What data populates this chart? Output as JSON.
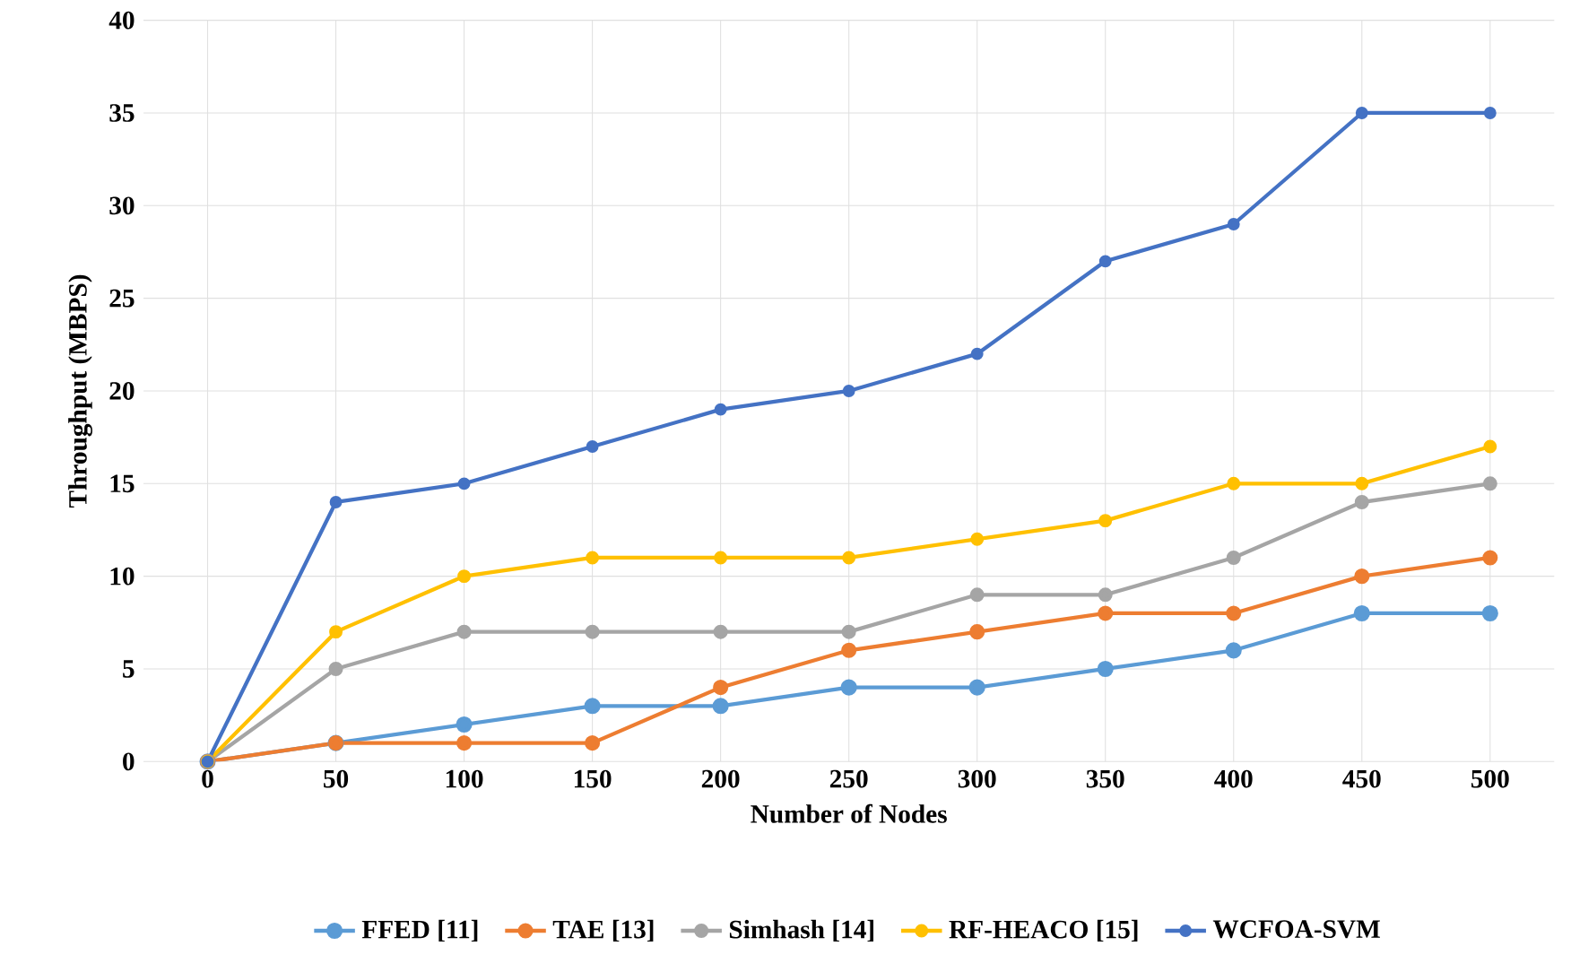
{
  "chart_data": {
    "type": "line",
    "xlabel": "Number of Nodes",
    "ylabel": "Throughput (MBPS)",
    "categories": [
      "0",
      "50",
      "100",
      "150",
      "200",
      "250",
      "300",
      "350",
      "400",
      "450",
      "500"
    ],
    "ylim": [
      0,
      40
    ],
    "yticks": [
      0,
      5,
      10,
      15,
      20,
      25,
      30,
      35,
      40
    ],
    "grid": true,
    "legend": "bottom",
    "marker": "circle",
    "line_style": "solid",
    "series": [
      {
        "name": "FFED [11]",
        "color": "#5b9bd5",
        "values": [
          0,
          1,
          2,
          3,
          3,
          4,
          4,
          5,
          6,
          8,
          8
        ]
      },
      {
        "name": "TAE [13]",
        "color": "#ed7d31",
        "values": [
          0,
          1,
          1,
          1,
          4,
          6,
          7,
          8,
          8,
          10,
          11
        ]
      },
      {
        "name": "Simhash [14]",
        "color": "#a5a5a5",
        "values": [
          0,
          5,
          7,
          7,
          7,
          7,
          9,
          9,
          11,
          14,
          15
        ]
      },
      {
        "name": "RF-HEACO [15]",
        "color": "#ffc000",
        "values": [
          0,
          7,
          10,
          11,
          11,
          11,
          12,
          13,
          15,
          15,
          17
        ]
      },
      {
        "name": "WCFOA-SVM",
        "color": "#4472c4",
        "values": [
          0,
          14,
          15,
          17,
          19,
          20,
          22,
          27,
          29,
          35,
          35
        ]
      }
    ]
  }
}
